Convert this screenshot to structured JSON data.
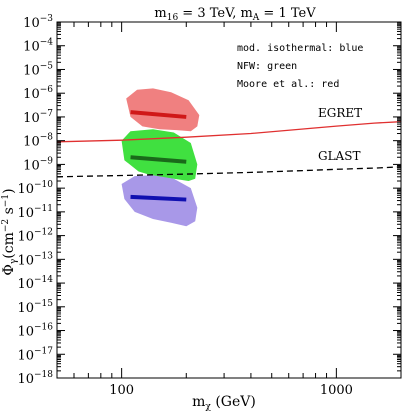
{
  "chart_data": {
    "type": "line",
    "title": "m16 = 3 TeV, mA = 1 TeV",
    "title_parts": {
      "m1": "m",
      "sub1": "16",
      "val1": " = 3 TeV, ",
      "m2": "m",
      "sub2": "A",
      "val2": " = 1 TeV"
    },
    "xlabel": "mχ (GeV)",
    "xlabel_parts": {
      "main": "m",
      "sub": "χ",
      "unit": " (GeV)"
    },
    "ylabel": "Φγ(cm⁻² s⁻¹)",
    "ylabel_parts": {
      "main": "Φ",
      "sub": "γ",
      "unit": "(cm",
      "exp1": "−2",
      "mid": " s",
      "exp2": "−1",
      "end": ")"
    },
    "x_scale": "log",
    "y_scale": "log",
    "xlim": [
      50,
      2000
    ],
    "ylim": [
      1e-18,
      0.001
    ],
    "x_ticks": [
      {
        "value": 100,
        "label": "100"
      },
      {
        "value": 1000,
        "label": "1000"
      }
    ],
    "y_ticks": [
      {
        "value": 0.001,
        "base": "10",
        "exp": "−3"
      },
      {
        "value": 0.0001,
        "base": "10",
        "exp": "−4"
      },
      {
        "value": 1e-05,
        "base": "10",
        "exp": "−5"
      },
      {
        "value": 1e-06,
        "base": "10",
        "exp": "−6"
      },
      {
        "value": 1e-07,
        "base": "10",
        "exp": "−7"
      },
      {
        "value": 1e-08,
        "base": "10",
        "exp": "−8"
      },
      {
        "value": 1e-09,
        "base": "10",
        "exp": "−9"
      },
      {
        "value": 1e-10,
        "base": "10",
        "exp": "−10"
      },
      {
        "value": 1e-11,
        "base": "10",
        "exp": "−11"
      },
      {
        "value": 1e-12,
        "base": "10",
        "exp": "−12"
      },
      {
        "value": 1e-13,
        "base": "10",
        "exp": "−13"
      },
      {
        "value": 1e-14,
        "base": "10",
        "exp": "−14"
      },
      {
        "value": 1e-15,
        "base": "10",
        "exp": "−15"
      },
      {
        "value": 1e-16,
        "base": "10",
        "exp": "−16"
      },
      {
        "value": 1e-17,
        "base": "10",
        "exp": "−17"
      },
      {
        "value": 1e-18,
        "base": "10",
        "exp": "−18"
      }
    ],
    "legend_lines": [
      "mod. isothermal: blue",
      "NFW: green",
      "Moore et al.: red"
    ],
    "legend_placement": "top-right",
    "curves": [
      {
        "name": "EGRET",
        "color": "#e03030",
        "style": "solid",
        "x": [
          50,
          100,
          200,
          400,
          700,
          1000,
          1500,
          2000
        ],
        "y": [
          9e-09,
          1.05e-08,
          1.4e-08,
          2e-08,
          3.1e-08,
          4.1e-08,
          5.5e-08,
          6.3e-08
        ]
      },
      {
        "name": "GLAST",
        "color": "#000000",
        "style": "dashed",
        "x": [
          50,
          100,
          200,
          400,
          700,
          1000,
          1500,
          2000
        ],
        "y": [
          3e-10,
          3.4e-10,
          3.9e-10,
          4.6e-10,
          5.5e-10,
          6.2e-10,
          7e-10,
          7.9e-10
        ]
      }
    ],
    "bands": [
      {
        "name": "Moore et al.",
        "fill": "#f08080",
        "line_color": "#d01818",
        "x": [
          105,
          118,
          140,
          170,
          205,
          230,
          225,
          210,
          180,
          150,
          125,
          110,
          105
        ],
        "y": [
          6e-07,
          1.4e-06,
          1.6e-06,
          1.1e-06,
          5e-07,
          1.2e-07,
          4e-08,
          2.5e-08,
          2.8e-08,
          3e-08,
          4e-08,
          1e-07,
          6e-07
        ],
        "line_x": [
          110,
          200
        ],
        "line_y": [
          1.6e-07,
          1e-07
        ]
      },
      {
        "name": "NFW",
        "fill": "#40e040",
        "line_color": "#1a6a1a",
        "x": [
          100,
          110,
          140,
          175,
          210,
          225,
          220,
          205,
          175,
          145,
          120,
          103,
          100
        ],
        "y": [
          1e-08,
          2.5e-08,
          3e-08,
          2.2e-08,
          8e-09,
          1e-09,
          2.5e-10,
          2e-10,
          2.5e-10,
          3e-10,
          5e-10,
          1.5e-09,
          1e-08
        ],
        "line_x": [
          110,
          200
        ],
        "line_y": [
          2e-09,
          1.3e-09
        ]
      },
      {
        "name": "mod. isothermal",
        "fill": "#a898e8",
        "line_color": "#1010b0",
        "x": [
          100,
          115,
          140,
          175,
          210,
          225,
          220,
          200,
          170,
          140,
          115,
          103,
          100
        ],
        "y": [
          1.5e-10,
          3.2e-10,
          3.5e-10,
          2.5e-10,
          1e-10,
          1.5e-11,
          4e-12,
          2.5e-12,
          3.5e-12,
          5e-12,
          1e-11,
          3.5e-11,
          1.5e-10
        ],
        "line_x": [
          110,
          200
        ],
        "line_y": [
          4.3e-11,
          3.3e-11
        ]
      }
    ]
  }
}
